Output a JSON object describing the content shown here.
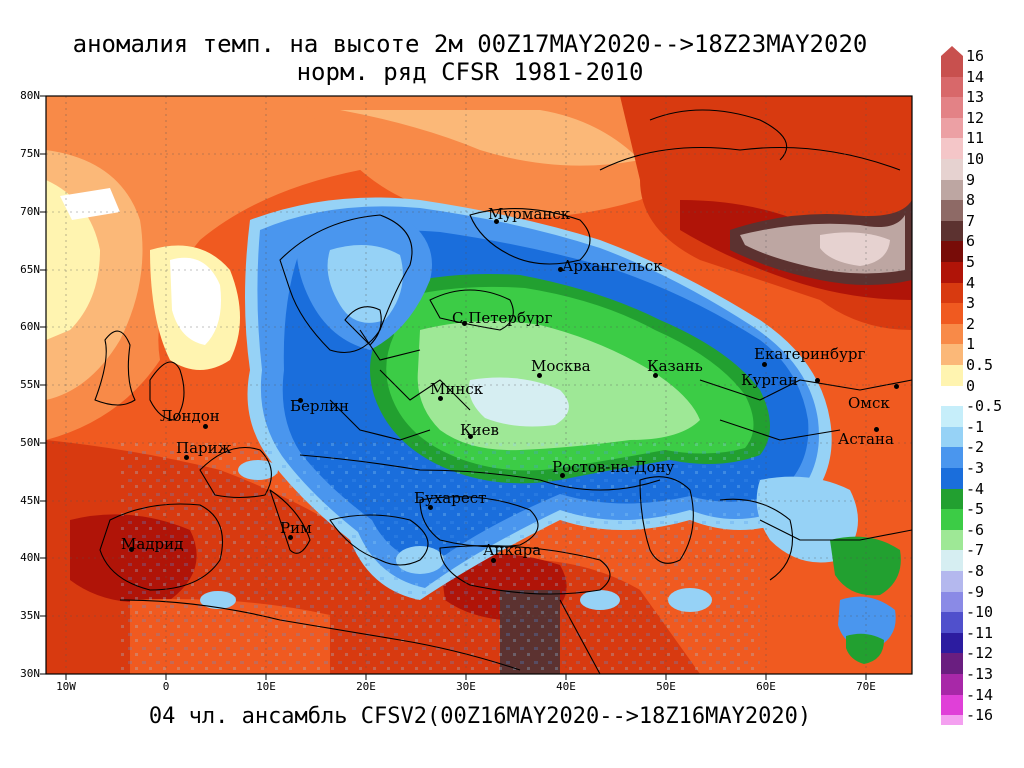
{
  "title_line1": "аномалия темп. на высоте 2м 00Z17MAY2020-->18Z23MAY2020",
  "title_line2": "норм. ряд CFSR 1981-2010",
  "bottom_caption": "04 чл. ансамбль CFSV2(00Z16MAY2020-->18Z16MAY2020)",
  "lat_labels": [
    "80N",
    "75N",
    "70N",
    "65N",
    "60N",
    "55N",
    "50N",
    "45N",
    "40N",
    "35N",
    "30N"
  ],
  "lon_labels": [
    "10W",
    "0",
    "10E",
    "20E",
    "30E",
    "40E",
    "50E",
    "60E",
    "70E"
  ],
  "cities": [
    {
      "name": "Мурманск"
    },
    {
      "name": "Архангельск"
    },
    {
      "name": "С.Петербург"
    },
    {
      "name": "Екатеринбург"
    },
    {
      "name": "Москва"
    },
    {
      "name": "Казань"
    },
    {
      "name": "Курган"
    },
    {
      "name": "Минск"
    },
    {
      "name": "Берлин"
    },
    {
      "name": "Омск"
    },
    {
      "name": "Лондон"
    },
    {
      "name": "Париж"
    },
    {
      "name": "Киев"
    },
    {
      "name": "Астана"
    },
    {
      "name": "Ростов-на-Дону"
    },
    {
      "name": "Бухарест"
    },
    {
      "name": "Рим"
    },
    {
      "name": "Мадрид"
    },
    {
      "name": "Анкара"
    }
  ],
  "colorbar": {
    "top_arrow_color": "#c8504e",
    "bottom_arrow_color": "#f4a0f0",
    "levels": [
      {
        "label": "16",
        "color": "#c8504e"
      },
      {
        "label": "14",
        "color": "#d8686a"
      },
      {
        "label": "13",
        "color": "#e38286"
      },
      {
        "label": "12",
        "color": "#eca0a4"
      },
      {
        "label": "11",
        "color": "#f4c6c8"
      },
      {
        "label": "10",
        "color": "#e6d2d0"
      },
      {
        "label": "9",
        "color": "#bda6a2"
      },
      {
        "label": "8",
        "color": "#8e6a66"
      },
      {
        "label": "7",
        "color": "#5c3230"
      },
      {
        "label": "6",
        "color": "#780c08"
      },
      {
        "label": "5",
        "color": "#b01408"
      },
      {
        "label": "4",
        "color": "#d83a10"
      },
      {
        "label": "3",
        "color": "#f05a20"
      },
      {
        "label": "2",
        "color": "#f88a48"
      },
      {
        "label": "1",
        "color": "#fbb878"
      },
      {
        "label": "0.5",
        "color": "#fff4b0"
      },
      {
        "label": "0",
        "color": "#ffffff"
      },
      {
        "label": "-0.5",
        "color": "#c6eefa"
      },
      {
        "label": "-1",
        "color": "#96d2f6"
      },
      {
        "label": "-2",
        "color": "#4a96ee"
      },
      {
        "label": "-3",
        "color": "#1a6edc"
      },
      {
        "label": "-4",
        "color": "#22a030"
      },
      {
        "label": "-5",
        "color": "#3ccc46"
      },
      {
        "label": "-6",
        "color": "#9ee896"
      },
      {
        "label": "-7",
        "color": "#d6eef2"
      },
      {
        "label": "-8",
        "color": "#b4b8ee"
      },
      {
        "label": "-9",
        "color": "#8a8ae6"
      },
      {
        "label": "-10",
        "color": "#5050cc"
      },
      {
        "label": "-11",
        "color": "#2c1ca0"
      },
      {
        "label": "-12",
        "color": "#6a1e80"
      },
      {
        "label": "-13",
        "color": "#a828a8"
      },
      {
        "label": "-14",
        "color": "#e040d8"
      },
      {
        "label": "-16",
        "color": "#f4a0f0"
      }
    ]
  }
}
